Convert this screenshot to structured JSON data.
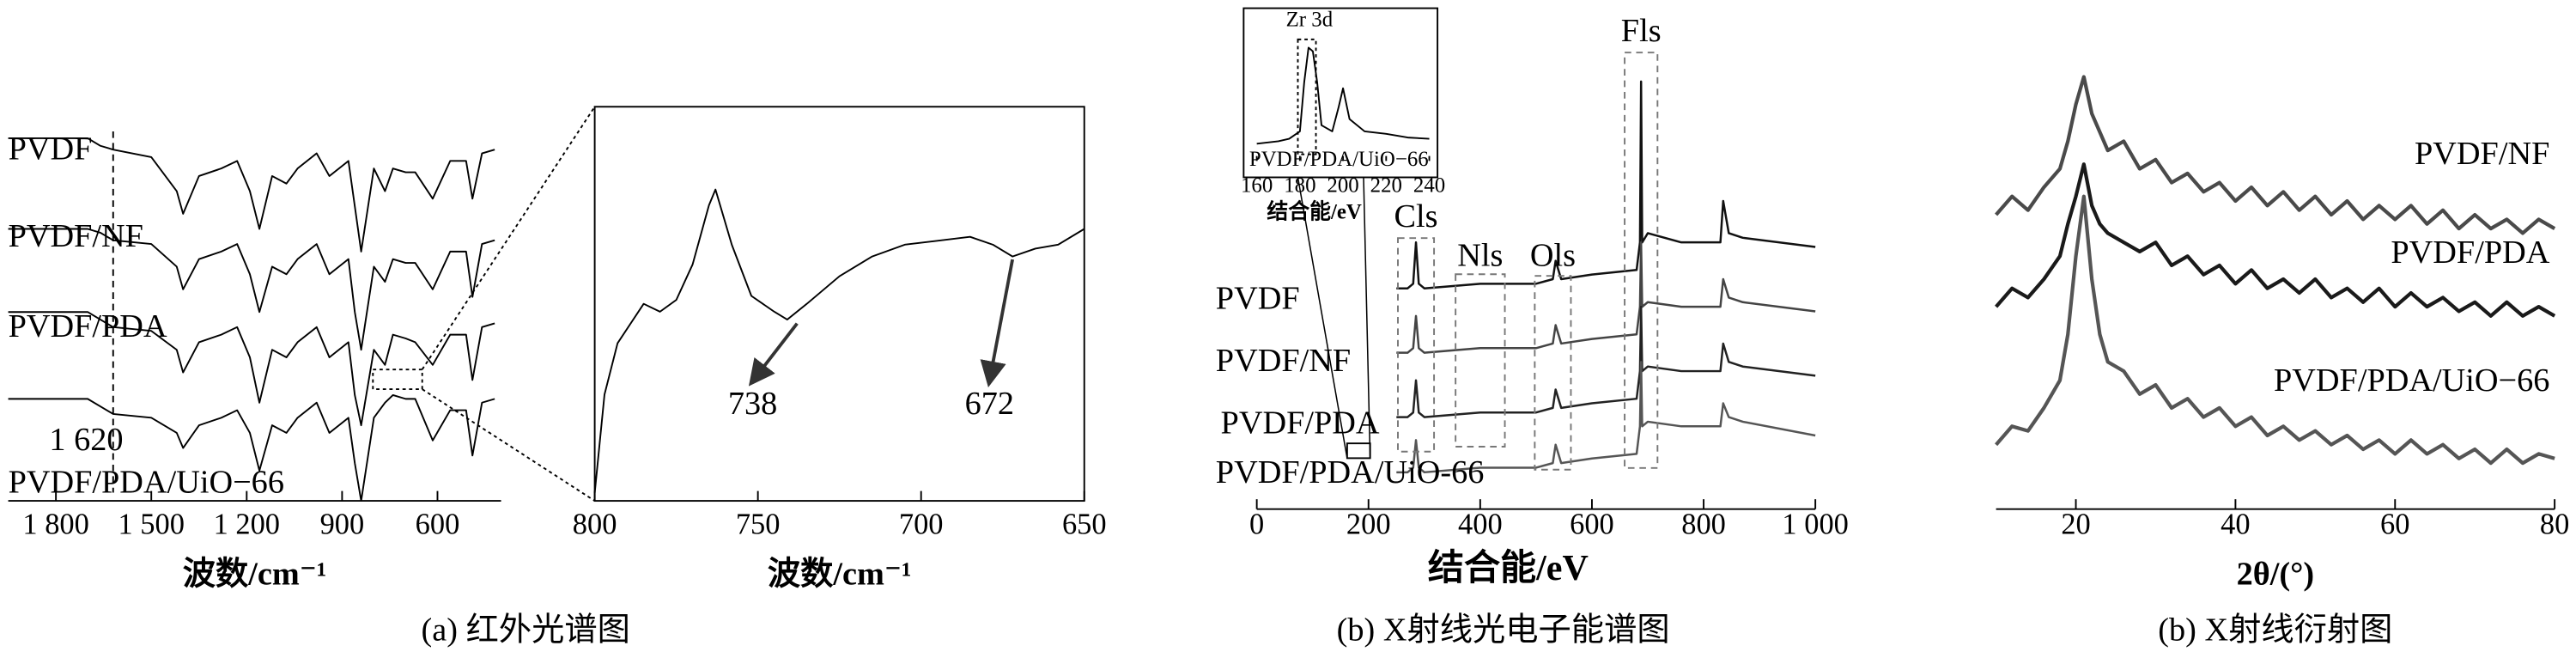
{
  "chart_data": [
    {
      "type": "line",
      "xlabel": "波数/cm⁻¹",
      "caption": "(a)  红外光谱图",
      "x": [
        1950,
        1700,
        1660,
        1620,
        1500,
        1420,
        1400,
        1350,
        1280,
        1230,
        1190,
        1160,
        1120,
        1075,
        1040,
        980,
        940,
        880,
        860,
        840,
        800,
        765,
        740,
        700,
        670,
        615,
        560,
        510,
        490,
        460,
        420
      ],
      "xlim": [
        1950,
        400
      ],
      "ylim": [
        0,
        100
      ],
      "xticks": [
        {
          "value": 1800,
          "label": "1 800"
        },
        {
          "value": 1500,
          "label": "1 500"
        },
        {
          "value": 1200,
          "label": "1 200"
        },
        900,
        600
      ],
      "series": [
        {
          "name": "PVDF",
          "color": "#000000",
          "values": [
            96,
            96,
            94,
            93,
            91,
            82,
            76,
            86,
            88,
            90,
            82,
            72,
            86,
            84,
            88,
            92,
            86,
            90,
            78,
            66,
            88,
            82,
            88,
            87,
            87,
            80,
            90,
            90,
            80,
            92,
            93
          ]
        },
        {
          "name": "PVDF/NF",
          "color": "#000000",
          "values": [
            72,
            72,
            71,
            69,
            68,
            62,
            56,
            64,
            66,
            68,
            60,
            50,
            62,
            60,
            64,
            68,
            60,
            64,
            50,
            40,
            62,
            58,
            64,
            63,
            63,
            56,
            66,
            66,
            54,
            68,
            69
          ]
        },
        {
          "name": "PVDF/PDA",
          "color": "#000000",
          "values": [
            50,
            50,
            48,
            46,
            45,
            40,
            34,
            42,
            44,
            46,
            38,
            26,
            40,
            38,
            42,
            46,
            38,
            42,
            28,
            20,
            40,
            36,
            44,
            43,
            42,
            36,
            44,
            44,
            32,
            46,
            47
          ]
        },
        {
          "name": "PVDF/PDA/UiO−66",
          "color": "#000000",
          "values": [
            27,
            27,
            25,
            23,
            22,
            18,
            14,
            20,
            22,
            24,
            18,
            8,
            20,
            18,
            22,
            26,
            18,
            22,
            10,
            0,
            22,
            26,
            28,
            27,
            27,
            16,
            24,
            24,
            12,
            26,
            27
          ]
        }
      ],
      "annotations": [
        {
          "value": 1620,
          "label": "1 620"
        }
      ]
    },
    {
      "type": "line",
      "xlabel": "波数/cm⁻¹",
      "x": [
        800,
        797,
        793,
        785,
        780,
        775,
        770,
        765,
        763,
        758,
        752,
        745,
        741,
        735,
        725,
        715,
        705,
        695,
        685,
        678,
        672,
        665,
        658,
        650
      ],
      "xlim": [
        800,
        650
      ],
      "ylim": [
        0,
        100
      ],
      "xticks": [
        800,
        750,
        700,
        650
      ],
      "series": [
        {
          "color": "#000000",
          "values": [
            2,
            27,
            40,
            50,
            48,
            51,
            60,
            75,
            79,
            65,
            52,
            48,
            46,
            50,
            57,
            62,
            65,
            66,
            67,
            65,
            62,
            64,
            65,
            69
          ]
        }
      ],
      "annotations": [
        738,
        672
      ]
    },
    {
      "type": "line",
      "xlabel": "结合能/eV",
      "caption": "(b)  X射线光电子能谱图",
      "x": [
        250,
        270,
        280,
        285,
        290,
        300,
        400,
        500,
        530,
        535,
        545,
        600,
        680,
        686,
        688,
        690,
        700,
        760,
        830,
        835,
        845,
        870,
        1000
      ],
      "xlim": [
        0,
        1000
      ],
      "ylim": [
        0,
        100
      ],
      "xticks": [
        0,
        200,
        400,
        600,
        800,
        {
          "value": 1000,
          "label": "1 000"
        }
      ],
      "series": [
        {
          "name": "PVDF",
          "color": "#111111",
          "values": [
            48,
            48,
            49,
            58,
            49,
            48,
            49,
            49,
            50,
            54,
            50,
            51,
            52,
            58,
            93,
            58,
            60,
            58,
            58,
            67,
            60,
            59,
            57
          ]
        },
        {
          "name": "PVDF/NF",
          "color": "#444444",
          "values": [
            34,
            34,
            35,
            42,
            35,
            34,
            35,
            35,
            36,
            40,
            36,
            37,
            38,
            44,
            58,
            44,
            45,
            44,
            44,
            50,
            46,
            45,
            43
          ]
        },
        {
          "name": "PVDF/PDA",
          "color": "#222222",
          "values": [
            20,
            20,
            21,
            28,
            21,
            20,
            21,
            21,
            22,
            26,
            22,
            23,
            24,
            30,
            44,
            30,
            31,
            30,
            30,
            36,
            32,
            31,
            29
          ]
        },
        {
          "name": "PVDF/PDA/UiO-66",
          "color": "#555555",
          "values": [
            8,
            8,
            9,
            15,
            9,
            8,
            9,
            9,
            10,
            14,
            10,
            11,
            12,
            18,
            32,
            18,
            19,
            18,
            18,
            23,
            20,
            19,
            16
          ]
        }
      ],
      "annotations": [
        {
          "value": 285,
          "label": "Cls"
        },
        {
          "value": 400,
          "label": "Nls"
        },
        {
          "value": 530,
          "label": "Ols"
        },
        {
          "value": 688,
          "label": "Fls"
        }
      ]
    },
    {
      "type": "line",
      "title": "Zr 3d",
      "xlabel": "结合能/eV",
      "x": [
        160,
        170,
        175,
        180,
        182,
        184,
        186,
        188,
        190,
        195,
        198,
        200,
        203,
        210,
        220,
        230,
        240
      ],
      "xlim": [
        160,
        240
      ],
      "ylim": [
        0,
        100
      ],
      "xticks": [
        160,
        180,
        200,
        220,
        240
      ],
      "series": [
        {
          "name": "PVDF/PDA/UiO−66",
          "color": "#000000",
          "values": [
            10,
            12,
            14,
            20,
            60,
            88,
            85,
            60,
            25,
            20,
            40,
            55,
            30,
            20,
            18,
            15,
            14
          ]
        }
      ]
    },
    {
      "type": "line",
      "xlabel": "2θ/(°)",
      "caption": "(b)  X射线衍射图",
      "x": [
        10,
        12,
        14,
        16,
        18,
        19,
        20,
        21,
        22,
        23,
        24,
        26,
        28,
        30,
        32,
        34,
        36,
        38,
        40,
        42,
        44,
        46,
        48,
        50,
        52,
        54,
        56,
        58,
        60,
        62,
        64,
        66,
        68,
        70,
        72,
        74,
        76,
        78,
        80
      ],
      "xlim": [
        10,
        80
      ],
      "ylim": [
        0,
        100
      ],
      "xticks": [
        20,
        40,
        60,
        80
      ],
      "series": [
        {
          "name": "PVDF/NF",
          "color": "#4a4a4a",
          "values": [
            64,
            68,
            65,
            70,
            74,
            80,
            88,
            94,
            86,
            82,
            78,
            80,
            74,
            76,
            71,
            73,
            69,
            71,
            67,
            70,
            66,
            69,
            65,
            68,
            64,
            67,
            63,
            66,
            63,
            66,
            62,
            65,
            61,
            64,
            61,
            63,
            60,
            63,
            61
          ]
        },
        {
          "name": "PVDF/PDA",
          "color": "#1a1a1a",
          "values": [
            44,
            48,
            46,
            50,
            55,
            62,
            68,
            75,
            66,
            62,
            60,
            58,
            56,
            58,
            53,
            55,
            51,
            53,
            49,
            52,
            48,
            50,
            47,
            50,
            46,
            48,
            45,
            48,
            44,
            47,
            44,
            46,
            43,
            45,
            42,
            45,
            42,
            44,
            42
          ]
        },
        {
          "name": "PVDF/PDA/UiO−66",
          "color": "#555555",
          "values": [
            14,
            18,
            17,
            22,
            28,
            38,
            55,
            68,
            50,
            38,
            32,
            30,
            25,
            27,
            22,
            24,
            20,
            22,
            18,
            20,
            16,
            18,
            15,
            17,
            14,
            16,
            13,
            15,
            12,
            15,
            12,
            14,
            11,
            13,
            10,
            13,
            10,
            12,
            11
          ]
        }
      ]
    }
  ]
}
